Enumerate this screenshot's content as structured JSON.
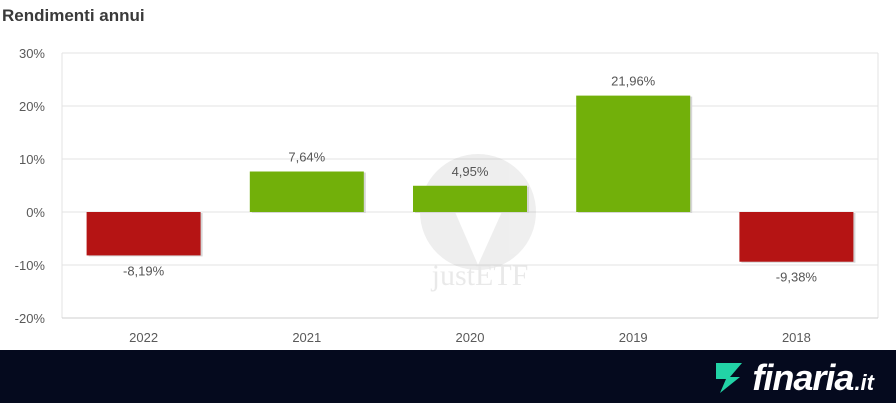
{
  "chart_data": {
    "type": "bar",
    "title": "Rendimenti annui",
    "categories": [
      "2022",
      "2021",
      "2020",
      "2019",
      "2018"
    ],
    "values": [
      -8.19,
      7.64,
      4.95,
      21.96,
      -9.38
    ],
    "value_labels": [
      "-8,19%",
      "7,64%",
      "4,95%",
      "21,96%",
      "-9,38%"
    ],
    "ylim": [
      -20,
      30
    ],
    "yticks": [
      30,
      20,
      10,
      0,
      -10,
      -20
    ],
    "ytick_labels": [
      "30%",
      "20%",
      "10%",
      "0%",
      "-10%",
      "-20%"
    ],
    "grid": true,
    "colors": {
      "positive": "#72b00a",
      "negative": "#b51414"
    }
  },
  "watermark": {
    "text": "justETF"
  },
  "footer": {
    "brand_name": "finaria",
    "brand_tld": ".it",
    "brand_color": "#22d3a6"
  }
}
